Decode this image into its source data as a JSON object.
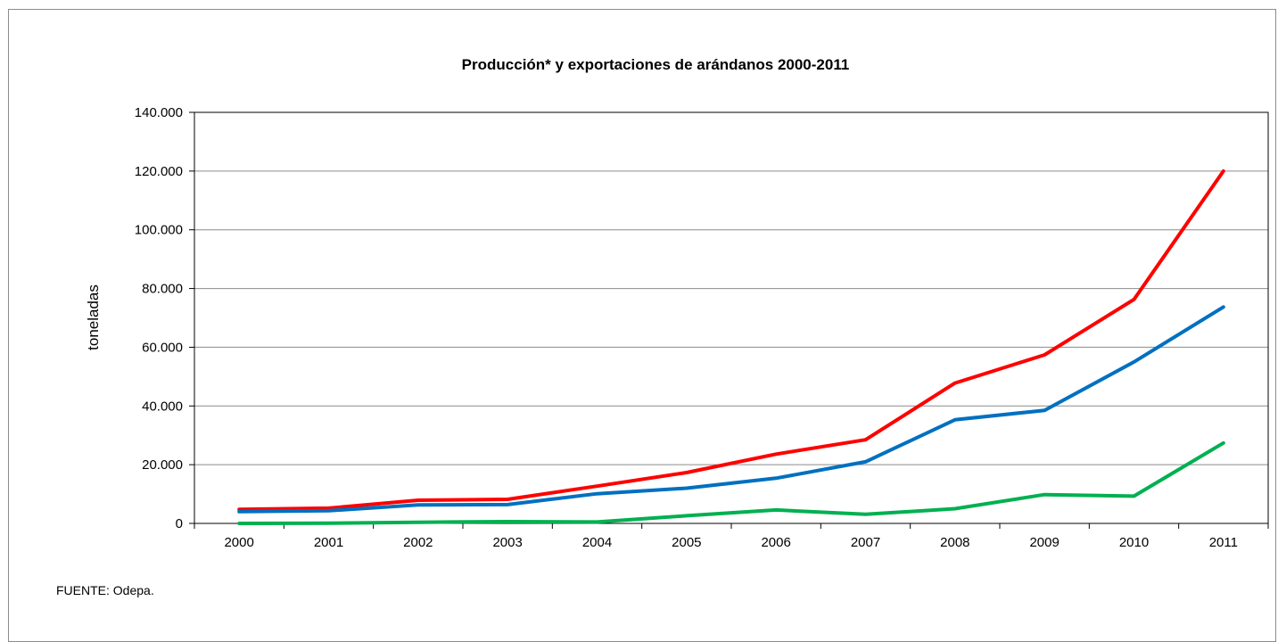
{
  "chart_data": {
    "type": "line",
    "title": "Producción* y exportaciones de arándanos 2000-2011",
    "xlabel": "",
    "ylabel": "toneladas",
    "ylim": [
      0,
      140000
    ],
    "yticks": [
      "0",
      "20.000",
      "40.000",
      "60.000",
      "80.000",
      "100.000",
      "120.000",
      "140.000"
    ],
    "ytick_values": [
      0,
      20000,
      40000,
      60000,
      80000,
      100000,
      120000,
      140000
    ],
    "categories": [
      "2000",
      "2001",
      "2002",
      "2003",
      "2004",
      "2005",
      "2006",
      "2007",
      "2008",
      "2009",
      "2010",
      "2011"
    ],
    "grid": true,
    "series": [
      {
        "color": "#ff0000",
        "values": [
          4800,
          5200,
          7900,
          8200,
          12700,
          17300,
          23600,
          28500,
          47800,
          57400,
          76300,
          120000
        ]
      },
      {
        "color": "#0070c0",
        "values": [
          4000,
          4300,
          6300,
          6400,
          10100,
          12000,
          15400,
          21000,
          35300,
          38500,
          55000,
          73700
        ]
      },
      {
        "color": "#00b050",
        "values": [
          0,
          100,
          400,
          600,
          500,
          2600,
          4600,
          3100,
          5000,
          9800,
          9300,
          27400
        ]
      }
    ]
  },
  "source": "FUENTE: Odepa."
}
